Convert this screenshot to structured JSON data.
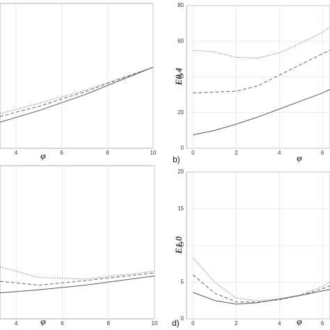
{
  "chart_data": [
    {
      "type": "line",
      "xlabel": "φ",
      "xlim": [
        3.3,
        10
      ],
      "ylim": [
        0,
        100
      ],
      "xticks": [
        4,
        6,
        8,
        10
      ],
      "grid": true,
      "x": [
        3.3,
        5,
        7,
        10
      ],
      "series": [
        {
          "color": "#555555",
          "dash": "solid",
          "values": [
            18,
            26,
            37,
            56
          ]
        },
        {
          "color": "#666666",
          "dash": "dashed",
          "values": [
            22,
            29,
            39,
            56
          ]
        },
        {
          "color": "#777777",
          "dash": "dotted",
          "values": [
            24,
            31,
            40,
            56
          ]
        }
      ]
    },
    {
      "type": "line",
      "label": "b)",
      "xlabel": "φ",
      "ylabel": "E0,4",
      "xlim": [
        -0.3,
        6.35
      ],
      "ylim": [
        0,
        80
      ],
      "xticks": [
        0,
        2,
        4,
        6
      ],
      "yticks": [
        0,
        20,
        40,
        60,
        80
      ],
      "grid": true,
      "x": [
        0,
        1,
        2,
        3,
        4,
        5,
        6,
        6.35
      ],
      "series": [
        {
          "color": "#555555",
          "dash": "solid",
          "values": [
            7.5,
            10,
            13.5,
            17.5,
            22,
            26.5,
            31,
            33
          ]
        },
        {
          "color": "#666666",
          "dash": "dashed",
          "values": [
            31,
            31.5,
            32,
            35,
            41,
            47,
            53,
            55
          ]
        },
        {
          "color": "#777777",
          "dash": "dotted",
          "values": [
            55,
            54,
            51,
            50.5,
            53.5,
            59,
            65,
            68
          ]
        }
      ]
    },
    {
      "type": "line",
      "xlabel": "φ",
      "xlim": [
        3.3,
        10
      ],
      "ylim": [
        0,
        100
      ],
      "xticks": [
        4,
        6,
        8,
        10
      ],
      "grid": true,
      "x": [
        3.3,
        5,
        7,
        10
      ],
      "series": [
        {
          "color": "#555555",
          "dash": "solid",
          "values": [
            17,
            19,
            22,
            28
          ]
        },
        {
          "color": "#666666",
          "dash": "dashed",
          "values": [
            24.5,
            22,
            25,
            30
          ]
        },
        {
          "color": "#777777",
          "dash": "dotted",
          "values": [
            34,
            27,
            26,
            31
          ]
        }
      ]
    },
    {
      "type": "line",
      "label": "d)",
      "xlabel": "φ",
      "ylabel": "E1,0",
      "xlim": [
        -0.3,
        6.35
      ],
      "ylim": [
        0,
        20
      ],
      "xticks": [
        0,
        2,
        4,
        6
      ],
      "yticks": [
        0,
        5,
        10,
        15,
        20
      ],
      "grid": true,
      "x": [
        0,
        1,
        2,
        3,
        4,
        5,
        6,
        6.35
      ],
      "series": [
        {
          "color": "#555555",
          "dash": "solid",
          "values": [
            3.6,
            2.5,
            2,
            2.2,
            2.7,
            3.2,
            3.8,
            4
          ]
        },
        {
          "color": "#666666",
          "dash": "dashed",
          "values": [
            6,
            3.5,
            2.3,
            2.3,
            2.6,
            3.2,
            4.1,
            4.5
          ]
        },
        {
          "color": "#777777",
          "dash": "dotted",
          "values": [
            8.3,
            5,
            2.8,
            2.5,
            2.7,
            3.3,
            4.4,
            5
          ]
        }
      ]
    }
  ]
}
